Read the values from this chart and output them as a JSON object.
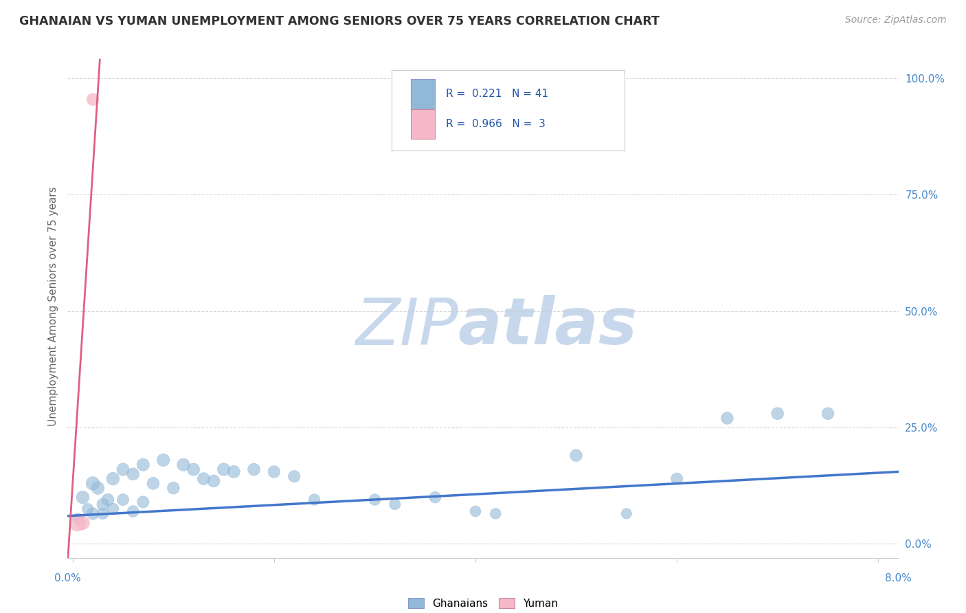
{
  "title": "GHANAIAN VS YUMAN UNEMPLOYMENT AMONG SENIORS OVER 75 YEARS CORRELATION CHART",
  "source": "Source: ZipAtlas.com",
  "ylabel": "Unemployment Among Seniors over 75 years",
  "yticks": [
    0.0,
    0.25,
    0.5,
    0.75,
    1.0
  ],
  "ytick_labels": [
    "0.0%",
    "25.0%",
    "50.0%",
    "75.0%",
    "100.0%"
  ],
  "xlim": [
    -0.0005,
    0.082
  ],
  "ylim": [
    -0.03,
    1.05
  ],
  "legend_blue_r": "0.221",
  "legend_blue_n": "41",
  "legend_pink_r": "0.966",
  "legend_pink_n": "3",
  "legend_label_blue": "Ghanaians",
  "legend_label_pink": "Yuman",
  "blue_scatter_x": [
    0.0005,
    0.001,
    0.0015,
    0.002,
    0.002,
    0.0025,
    0.003,
    0.003,
    0.0035,
    0.004,
    0.004,
    0.005,
    0.005,
    0.006,
    0.006,
    0.007,
    0.007,
    0.008,
    0.009,
    0.01,
    0.011,
    0.012,
    0.013,
    0.014,
    0.015,
    0.016,
    0.018,
    0.02,
    0.022,
    0.024,
    0.03,
    0.032,
    0.036,
    0.04,
    0.042,
    0.05,
    0.055,
    0.06,
    0.065,
    0.07,
    0.075
  ],
  "blue_scatter_y": [
    0.055,
    0.1,
    0.075,
    0.13,
    0.065,
    0.12,
    0.085,
    0.065,
    0.095,
    0.14,
    0.075,
    0.16,
    0.095,
    0.15,
    0.07,
    0.17,
    0.09,
    0.13,
    0.18,
    0.12,
    0.17,
    0.16,
    0.14,
    0.135,
    0.16,
    0.155,
    0.16,
    0.155,
    0.145,
    0.095,
    0.095,
    0.085,
    0.1,
    0.07,
    0.065,
    0.19,
    0.065,
    0.14,
    0.27,
    0.28,
    0.28
  ],
  "blue_scatter_sizes": [
    120,
    180,
    140,
    200,
    160,
    180,
    160,
    140,
    160,
    180,
    150,
    170,
    150,
    165,
    145,
    170,
    155,
    165,
    175,
    165,
    175,
    170,
    165,
    165,
    175,
    170,
    165,
    160,
    155,
    140,
    140,
    135,
    145,
    130,
    125,
    160,
    120,
    150,
    160,
    165,
    160
  ],
  "pink_scatter_x": [
    0.0005,
    0.001,
    0.002
  ],
  "pink_scatter_y": [
    0.045,
    0.045,
    0.955
  ],
  "pink_scatter_sizes": [
    300,
    200,
    160
  ],
  "blue_line_x": [
    -0.0005,
    0.082
  ],
  "blue_line_y": [
    0.06,
    0.155
  ],
  "pink_line_x": [
    -0.0005,
    0.0027
  ],
  "pink_line_y": [
    -0.04,
    1.04
  ],
  "watermark_zip": "ZIP",
  "watermark_atlas": "atlas",
  "bg_color": "#ffffff",
  "blue_color": "#92b8d8",
  "blue_line_color": "#4477cc",
  "pink_color": "#f5b8c8",
  "pink_line_color": "#e06080",
  "title_color": "#333333",
  "axis_label_color": "#666666",
  "tick_color": "#4488cc",
  "watermark_color_zip": "#c8d8ec",
  "watermark_color_atlas": "#c8d8ec",
  "grid_color": "#cccccc"
}
